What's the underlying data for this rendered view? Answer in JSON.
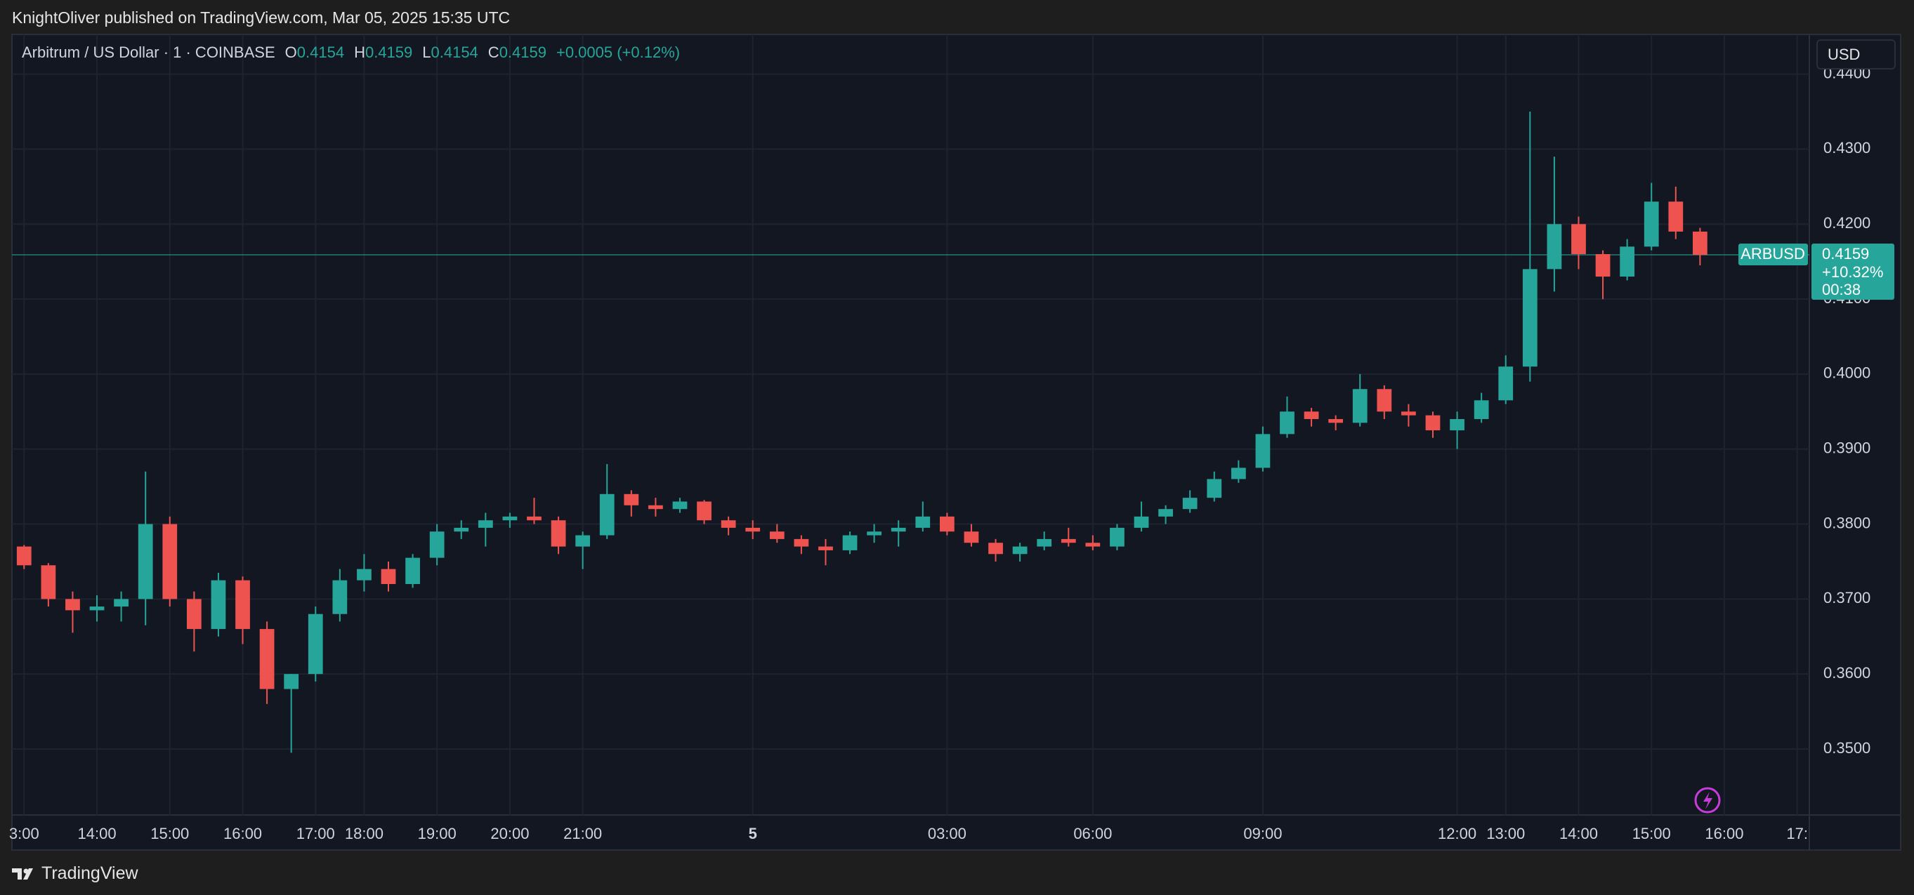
{
  "header": {
    "publisher": "KnightOliver published on TradingView.com, Mar 05, 2025 15:35 UTC",
    "currency_button": "USD",
    "brand": "TradingView"
  },
  "chart_data": {
    "type": "candlestick",
    "title": "Arbitrum / US Dollar · 1 · COINBASE",
    "legend": {
      "fields": [
        {
          "key": "O",
          "value": 0.4154
        },
        {
          "key": "H",
          "value": 0.4159
        },
        {
          "key": "L",
          "value": 0.4154
        },
        {
          "key": "C",
          "value": 0.4159
        }
      ],
      "change": "+0.0005 (+0.12%)"
    },
    "categories": [
      "3:00",
      null,
      null,
      "14:00",
      null,
      null,
      "15:00",
      null,
      null,
      "16:00",
      null,
      null,
      "17:00",
      null,
      "18:00",
      null,
      null,
      "19:00",
      null,
      null,
      "20:00",
      null,
      null,
      "21:00",
      null,
      null,
      null,
      null,
      null,
      null,
      "5",
      null,
      null,
      null,
      null,
      null,
      null,
      null,
      "03:00",
      null,
      null,
      null,
      null,
      null,
      "06:00",
      null,
      null,
      null,
      null,
      null,
      null,
      "09:00",
      null,
      null,
      null,
      null,
      null,
      null,
      null,
      "12:00",
      null,
      "13:00",
      null,
      null,
      "14:00",
      null,
      null,
      "15:00",
      null,
      null,
      "16:00",
      null,
      null,
      "17:"
    ],
    "open": [
      0.377,
      0.3745,
      0.37,
      0.3685,
      0.369,
      0.37,
      0.38,
      0.37,
      0.366,
      0.3725,
      0.366,
      0.358,
      0.36,
      0.368,
      0.3725,
      0.374,
      0.372,
      0.3755,
      0.379,
      0.3795,
      0.3805,
      0.381,
      0.3805,
      0.377,
      0.3785,
      0.384,
      0.3825,
      0.382,
      0.383,
      0.3805,
      0.3795,
      0.379,
      0.378,
      0.377,
      0.3765,
      0.3785,
      0.379,
      0.3795,
      0.381,
      0.379,
      0.3775,
      0.376,
      0.377,
      0.378,
      0.3775,
      0.377,
      0.3795,
      0.381,
      0.382,
      0.3835,
      0.386,
      0.3875,
      0.392,
      0.395,
      0.394,
      0.3935,
      0.398,
      0.395,
      0.3945,
      0.3925,
      0.394,
      0.3965,
      0.401,
      0.414,
      0.42,
      0.416,
      0.413,
      0.417,
      0.423,
      0.419,
      null,
      null,
      null,
      null
    ],
    "high": [
      0.3772,
      0.3748,
      0.371,
      0.3705,
      0.371,
      0.387,
      0.381,
      0.371,
      0.3735,
      0.373,
      0.367,
      0.36,
      0.369,
      0.374,
      0.376,
      0.375,
      0.376,
      0.38,
      0.3805,
      0.3815,
      0.3815,
      0.3835,
      0.381,
      0.379,
      0.388,
      0.3845,
      0.3835,
      0.3835,
      0.3832,
      0.381,
      0.3805,
      0.38,
      0.3785,
      0.378,
      0.379,
      0.38,
      0.3805,
      0.383,
      0.3815,
      0.38,
      0.378,
      0.3775,
      0.379,
      0.3795,
      0.3785,
      0.38,
      0.383,
      0.3825,
      0.3845,
      0.387,
      0.3885,
      0.393,
      0.397,
      0.3955,
      0.3945,
      0.4,
      0.3985,
      0.396,
      0.395,
      0.395,
      0.3975,
      0.4025,
      0.435,
      0.429,
      0.421,
      0.4165,
      0.418,
      0.4255,
      0.425,
      0.4195,
      null,
      null,
      null,
      null
    ],
    "low": [
      0.374,
      0.369,
      0.3655,
      0.367,
      0.367,
      0.3665,
      0.369,
      0.363,
      0.365,
      0.364,
      0.356,
      0.3495,
      0.359,
      0.367,
      0.371,
      0.371,
      0.3715,
      0.3745,
      0.378,
      0.377,
      0.3795,
      0.38,
      0.376,
      0.374,
      0.378,
      0.381,
      0.381,
      0.3815,
      0.38,
      0.3785,
      0.378,
      0.3775,
      0.376,
      0.3745,
      0.376,
      0.3775,
      0.377,
      0.379,
      0.3785,
      0.377,
      0.375,
      0.375,
      0.3765,
      0.377,
      0.3765,
      0.3765,
      0.379,
      0.38,
      0.3815,
      0.383,
      0.3855,
      0.387,
      0.3915,
      0.393,
      0.3925,
      0.393,
      0.394,
      0.393,
      0.3915,
      0.39,
      0.3935,
      0.396,
      0.399,
      0.411,
      0.414,
      0.41,
      0.4125,
      0.4165,
      0.418,
      0.4145,
      null,
      null,
      null,
      null
    ],
    "close": [
      0.3745,
      0.37,
      0.3685,
      0.369,
      0.37,
      0.38,
      0.37,
      0.366,
      0.3725,
      0.366,
      0.358,
      0.36,
      0.368,
      0.3725,
      0.374,
      0.372,
      0.3755,
      0.379,
      0.3795,
      0.3805,
      0.381,
      0.3805,
      0.377,
      0.3785,
      0.384,
      0.3825,
      0.382,
      0.383,
      0.3805,
      0.3795,
      0.379,
      0.378,
      0.377,
      0.3765,
      0.3785,
      0.379,
      0.3795,
      0.381,
      0.379,
      0.3775,
      0.376,
      0.377,
      0.378,
      0.3775,
      0.377,
      0.3795,
      0.381,
      0.382,
      0.3835,
      0.386,
      0.3875,
      0.392,
      0.395,
      0.394,
      0.3935,
      0.398,
      0.395,
      0.3945,
      0.3925,
      0.394,
      0.3965,
      0.401,
      0.414,
      0.42,
      0.416,
      0.413,
      0.417,
      0.423,
      0.419,
      0.4159,
      null,
      null,
      null,
      null
    ],
    "up_color": "#26a69a",
    "down_color": "#ef5350",
    "ylim": [
      0.3412,
      0.4453
    ],
    "yticks": [
      {
        "value": 0.35,
        "label": "0.3500"
      },
      {
        "value": 0.36,
        "label": "0.3600"
      },
      {
        "value": 0.37,
        "label": "0.3700"
      },
      {
        "value": 0.38,
        "label": "0.3800"
      },
      {
        "value": 0.39,
        "label": "0.3900"
      },
      {
        "value": 0.4,
        "label": "0.4000"
      },
      {
        "value": 0.41,
        "label": "0.4100"
      },
      {
        "value": 0.42,
        "label": "0.4200"
      },
      {
        "value": 0.43,
        "label": "0.4300"
      },
      {
        "value": 0.44,
        "label": "0.4400"
      }
    ],
    "grid": true,
    "last_price": {
      "symbol": "ARBUSD",
      "value": 0.4159,
      "change": "+10.32%",
      "countdown": "00:38",
      "color": "#26a69a"
    }
  }
}
